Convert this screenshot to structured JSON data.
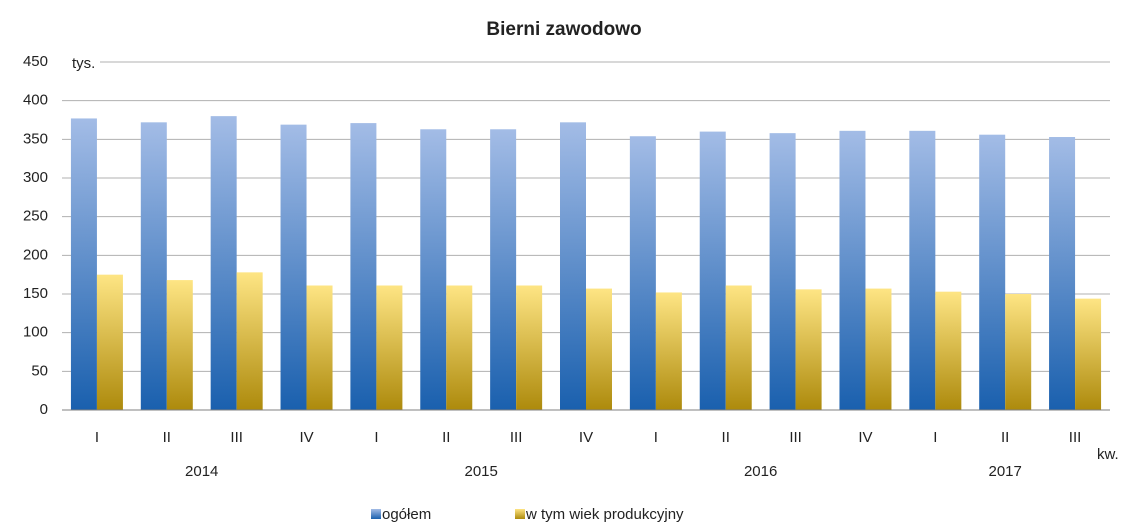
{
  "chart_data": {
    "type": "bar",
    "title": "Bierni zawodowo",
    "y_unit": "tys.",
    "x_unit": "kw.",
    "categories": [
      [
        "I",
        "2014"
      ],
      [
        "II",
        null
      ],
      [
        "III",
        null
      ],
      [
        "IV",
        null
      ],
      [
        "I",
        "2015"
      ],
      [
        "II",
        null
      ],
      [
        "III",
        null
      ],
      [
        "IV",
        null
      ],
      [
        "I",
        "2016"
      ],
      [
        "II",
        null
      ],
      [
        "III",
        null
      ],
      [
        "IV",
        null
      ],
      [
        "I",
        "2017"
      ],
      [
        "II",
        null
      ],
      [
        "III",
        null
      ]
    ],
    "series": [
      {
        "name": "ogółem",
        "color": [
          "#a3bce6",
          "#1a60ae"
        ],
        "values": [
          377,
          372,
          380,
          369,
          371,
          363,
          363,
          372,
          354,
          360,
          358,
          361,
          361,
          356,
          353
        ]
      },
      {
        "name": "w tym wiek produkcyjny",
        "color": [
          "#fee584",
          "#ad8a0c"
        ],
        "values": [
          175,
          168,
          178,
          161,
          161,
          161,
          161,
          157,
          152,
          161,
          156,
          157,
          153,
          150,
          144
        ]
      }
    ],
    "ylim": [
      0,
      450
    ],
    "yticks": [
      0,
      50,
      100,
      150,
      200,
      250,
      300,
      350,
      400,
      450
    ],
    "grid": true,
    "legend": "bottom"
  }
}
